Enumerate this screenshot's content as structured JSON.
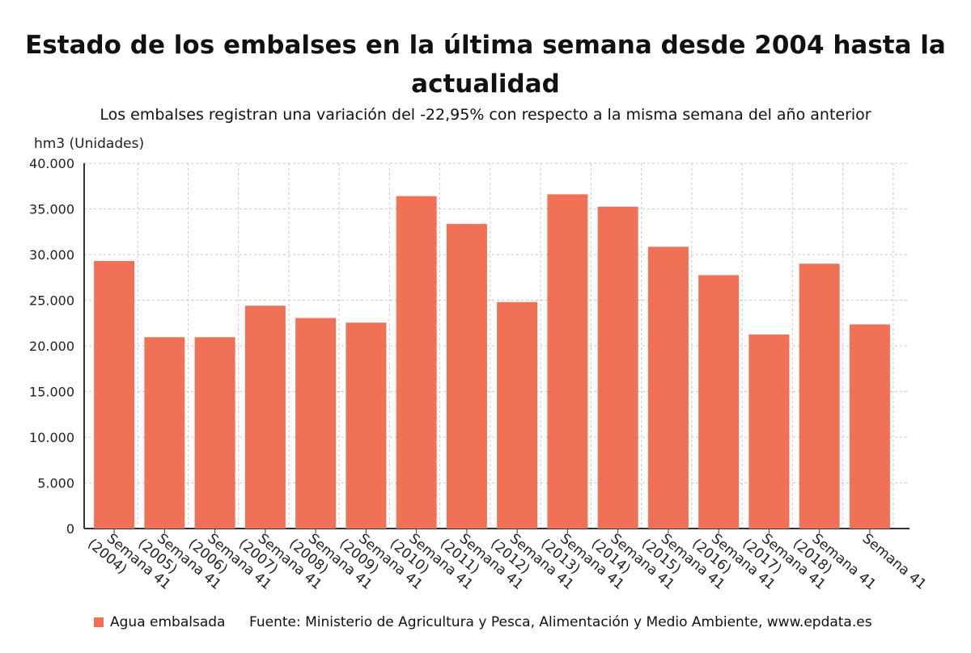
{
  "header": {
    "title": "Estado de los embalses en la última semana desde 2004 hasta la actualidad",
    "subtitle": "Los embalses registran una variación del -22,95% con respecto a la misma semana del año anterior"
  },
  "footer": {
    "legend_label": "Agua embalsada",
    "source": "Fuente: Ministerio de Agricultura y Pesca, Alimentación y Medio Ambiente, www.epdata.es"
  },
  "colors": {
    "bar": "#f07155",
    "grid": "#c8c8c8",
    "axis": "#333333"
  },
  "chart_data": {
    "type": "bar",
    "title": "Estado de los embalses en la última semana desde 2004 hasta la actualidad",
    "subtitle": "Los embalses registran una variación del -22,95% con respecto a la misma semana del año anterior",
    "ylabel": "hm3 (Unidades)",
    "xlabel": "",
    "ylim": [
      0,
      40000
    ],
    "yticks": [
      "0",
      "5.000",
      "10.000",
      "15.000",
      "20.000",
      "25.000",
      "30.000",
      "35.000",
      "40.000"
    ],
    "grid": true,
    "legend": "bottom-left",
    "categories": [
      "Semana 41 (2004)",
      "Semana 41 (2005)",
      "Semana 41 (2006)",
      "Semana 41 (2007)",
      "Semana 41 (2008)",
      "Semana 41 (2009)",
      "Semana 41 (2010)",
      "Semana 41 (2011)",
      "Semana 41 (2012)",
      "Semana 41 (2013)",
      "Semana 41 (2014)",
      "Semana 41 (2015)",
      "Semana 41 (2016)",
      "Semana 41 (2017)",
      "Semana 41 (2018)",
      "Semana 41"
    ],
    "series": [
      {
        "name": "Agua embalsada",
        "values": [
          29300,
          20950,
          20950,
          24400,
          23050,
          22550,
          36400,
          33350,
          24800,
          36600,
          35250,
          30850,
          27750,
          21250,
          29000,
          22350
        ]
      }
    ]
  }
}
